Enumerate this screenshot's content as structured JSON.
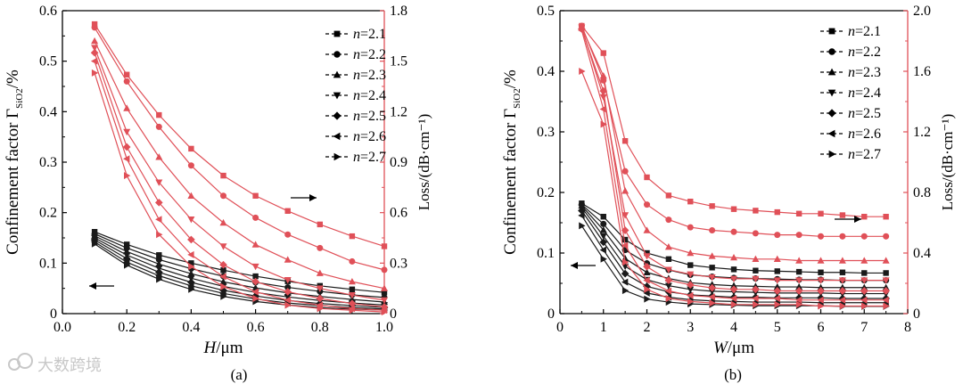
{
  "watermark": "大数跨境",
  "colors": {
    "confinement": "#1a1a1a",
    "loss": "#e05058",
    "axis": "#000000",
    "loss_axis": "#e05058"
  },
  "legend_items": [
    "n=2.1",
    "n=2.2",
    "n=2.3",
    "n=2.4",
    "n=2.5",
    "n=2.6",
    "n=2.7"
  ],
  "marker_order": [
    "square",
    "circle",
    "triangle-up",
    "triangle-down",
    "diamond",
    "triangle-left",
    "triangle-right"
  ],
  "chart_data": [
    {
      "type": "line",
      "panel": "(a)",
      "xlabel_var": "H",
      "xlabel_unit": "/μm",
      "ylabel_left": "Confinement factor Γ",
      "ylabel_left_sub": "SiO2",
      "ylabel_left_unit": "/%",
      "ylabel_right": "Loss/(dB·cm⁻¹)",
      "xlim": [
        0.0,
        1.0
      ],
      "ylim_left": [
        0,
        0.6
      ],
      "ylim_right": [
        0,
        1.8
      ],
      "xticks": [
        "0.0",
        "0.2",
        "0.4",
        "0.6",
        "0.8",
        "1.0"
      ],
      "yticks_left": [
        "0",
        "0.1",
        "0.2",
        "0.3",
        "0.4",
        "0.5",
        "0.6"
      ],
      "yticks_right": [
        "0",
        "0.3",
        "0.6",
        "0.9",
        "1.2",
        "1.5",
        "1.8"
      ],
      "x": [
        0.1,
        0.2,
        0.3,
        0.4,
        0.5,
        0.6,
        0.7,
        0.8,
        0.9,
        1.0
      ],
      "confinement_series": [
        {
          "name": "n=2.1",
          "values": [
            0.162,
            0.137,
            0.116,
            0.1,
            0.086,
            0.074,
            0.064,
            0.055,
            0.048,
            0.042
          ]
        },
        {
          "name": "n=2.2",
          "values": [
            0.158,
            0.13,
            0.107,
            0.089,
            0.074,
            0.062,
            0.052,
            0.044,
            0.037,
            0.032
          ]
        },
        {
          "name": "n=2.3",
          "values": [
            0.154,
            0.123,
            0.098,
            0.079,
            0.063,
            0.051,
            0.041,
            0.034,
            0.028,
            0.023
          ]
        },
        {
          "name": "n=2.4",
          "values": [
            0.15,
            0.116,
            0.09,
            0.07,
            0.054,
            0.042,
            0.033,
            0.026,
            0.021,
            0.017
          ]
        },
        {
          "name": "n=2.5",
          "values": [
            0.146,
            0.109,
            0.082,
            0.062,
            0.046,
            0.035,
            0.026,
            0.02,
            0.016,
            0.012
          ]
        },
        {
          "name": "n=2.6",
          "values": [
            0.142,
            0.102,
            0.075,
            0.055,
            0.04,
            0.029,
            0.021,
            0.016,
            0.012,
            0.009
          ]
        },
        {
          "name": "n=2.7",
          "values": [
            0.138,
            0.096,
            0.068,
            0.048,
            0.034,
            0.024,
            0.017,
            0.012,
            0.009,
            0.007
          ]
        }
      ],
      "loss_series": [
        {
          "name": "n=2.1",
          "values": [
            1.72,
            1.42,
            1.18,
            0.98,
            0.82,
            0.7,
            0.61,
            0.53,
            0.46,
            0.4
          ]
        },
        {
          "name": "n=2.2",
          "values": [
            1.7,
            1.38,
            1.11,
            0.88,
            0.7,
            0.57,
            0.47,
            0.39,
            0.31,
            0.26
          ]
        },
        {
          "name": "n=2.3",
          "values": [
            1.62,
            1.22,
            0.93,
            0.7,
            0.54,
            0.41,
            0.32,
            0.24,
            0.19,
            0.15
          ]
        },
        {
          "name": "n=2.4",
          "values": [
            1.58,
            1.08,
            0.78,
            0.56,
            0.4,
            0.28,
            0.2,
            0.15,
            0.11,
            0.08
          ]
        },
        {
          "name": "n=2.5",
          "values": [
            1.55,
            0.99,
            0.66,
            0.44,
            0.29,
            0.19,
            0.13,
            0.09,
            0.06,
            0.04
          ]
        },
        {
          "name": "n=2.6",
          "values": [
            1.5,
            0.92,
            0.56,
            0.35,
            0.22,
            0.13,
            0.08,
            0.05,
            0.03,
            0.02
          ]
        },
        {
          "name": "n=2.7",
          "values": [
            1.43,
            0.82,
            0.47,
            0.28,
            0.16,
            0.09,
            0.05,
            0.03,
            0.02,
            0.01
          ]
        }
      ],
      "arrow_loss": "right",
      "arrow_confinement": "left"
    },
    {
      "type": "line",
      "panel": "(b)",
      "xlabel_var": "W",
      "xlabel_unit": "/μm",
      "ylabel_left": "Confinement factor Γ",
      "ylabel_left_sub": "SiO2",
      "ylabel_left_unit": "/%",
      "ylabel_right": "Loss/(dB·cm⁻¹)",
      "xlim": [
        0,
        8
      ],
      "ylim_left": [
        0,
        0.5
      ],
      "ylim_right": [
        0,
        2.0
      ],
      "xticks": [
        "0",
        "1",
        "2",
        "3",
        "4",
        "5",
        "6",
        "7",
        "8"
      ],
      "yticks_left": [
        "0",
        "0.1",
        "0.2",
        "0.3",
        "0.4",
        "0.5"
      ],
      "yticks_right": [
        "0",
        "0.4",
        "0.8",
        "1.2",
        "1.6",
        "2.0"
      ],
      "x": [
        0.5,
        1.0,
        1.5,
        2.0,
        2.5,
        3.0,
        3.5,
        4.0,
        4.5,
        5.0,
        5.5,
        6.0,
        6.5,
        7.0,
        7.5
      ],
      "confinement_series": [
        {
          "name": "n=2.1",
          "values": [
            0.182,
            0.16,
            0.122,
            0.1,
            0.09,
            0.08,
            0.076,
            0.073,
            0.071,
            0.07,
            0.069,
            0.068,
            0.068,
            0.067,
            0.067
          ]
        },
        {
          "name": "n=2.2",
          "values": [
            0.18,
            0.148,
            0.105,
            0.083,
            0.072,
            0.064,
            0.061,
            0.059,
            0.058,
            0.057,
            0.056,
            0.056,
            0.055,
            0.055,
            0.055
          ]
        },
        {
          "name": "n=2.3",
          "values": [
            0.178,
            0.138,
            0.091,
            0.068,
            0.058,
            0.051,
            0.048,
            0.046,
            0.045,
            0.044,
            0.044,
            0.043,
            0.043,
            0.043,
            0.043
          ]
        },
        {
          "name": "n=2.4",
          "values": [
            0.175,
            0.128,
            0.078,
            0.056,
            0.046,
            0.04,
            0.037,
            0.036,
            0.035,
            0.034,
            0.034,
            0.034,
            0.033,
            0.033,
            0.033
          ]
        },
        {
          "name": "n=2.5",
          "values": [
            0.17,
            0.118,
            0.066,
            0.045,
            0.036,
            0.031,
            0.029,
            0.027,
            0.027,
            0.026,
            0.026,
            0.026,
            0.025,
            0.025,
            0.025
          ]
        },
        {
          "name": "n=2.6",
          "values": [
            0.162,
            0.105,
            0.052,
            0.034,
            0.027,
            0.023,
            0.021,
            0.02,
            0.019,
            0.019,
            0.019,
            0.018,
            0.018,
            0.018,
            0.018
          ]
        },
        {
          "name": "n=2.7",
          "values": [
            0.145,
            0.09,
            0.038,
            0.024,
            0.019,
            0.016,
            0.015,
            0.014,
            0.013,
            0.013,
            0.013,
            0.013,
            0.012,
            0.012,
            0.012
          ]
        }
      ],
      "loss_series": [
        {
          "name": "n=2.1",
          "values": [
            1.9,
            1.72,
            1.14,
            0.9,
            0.78,
            0.74,
            0.71,
            0.69,
            0.68,
            0.67,
            0.66,
            0.66,
            0.65,
            0.64,
            0.64
          ]
        },
        {
          "name": "n=2.2",
          "values": [
            1.9,
            1.54,
            0.94,
            0.72,
            0.62,
            0.57,
            0.55,
            0.54,
            0.53,
            0.52,
            0.52,
            0.51,
            0.51,
            0.51,
            0.51
          ]
        },
        {
          "name": "n=2.3",
          "values": [
            1.89,
            1.57,
            0.81,
            0.55,
            0.44,
            0.4,
            0.38,
            0.37,
            0.36,
            0.36,
            0.35,
            0.35,
            0.35,
            0.35,
            0.35
          ]
        },
        {
          "name": "n=2.4",
          "values": [
            1.89,
            1.43,
            0.65,
            0.38,
            0.29,
            0.26,
            0.24,
            0.23,
            0.23,
            0.22,
            0.22,
            0.22,
            0.22,
            0.22,
            0.22
          ]
        },
        {
          "name": "n=2.5",
          "values": [
            1.88,
            1.47,
            0.55,
            0.31,
            0.22,
            0.19,
            0.17,
            0.16,
            0.16,
            0.15,
            0.15,
            0.15,
            0.15,
            0.15,
            0.15
          ]
        },
        {
          "name": "n=2.6",
          "values": [
            1.87,
            1.35,
            0.45,
            0.22,
            0.15,
            0.12,
            0.11,
            0.1,
            0.1,
            0.1,
            0.09,
            0.09,
            0.09,
            0.09,
            0.09
          ]
        },
        {
          "name": "n=2.7",
          "values": [
            1.6,
            1.25,
            0.34,
            0.16,
            0.1,
            0.08,
            0.07,
            0.06,
            0.06,
            0.06,
            0.06,
            0.05,
            0.05,
            0.05,
            0.05
          ]
        }
      ],
      "arrow_loss": "right",
      "arrow_confinement": "left"
    }
  ]
}
